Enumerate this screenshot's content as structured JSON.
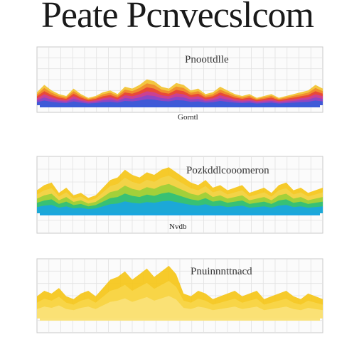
{
  "page": {
    "headline": "Peate Pcnvecslcom",
    "footer": ""
  },
  "chart_data": [
    {
      "type": "area",
      "title": "Pnoottdlle",
      "xlabel": "Gorntl",
      "colors": [
        "#f2c230",
        "#f08a2c",
        "#e8443a",
        "#c8409a",
        "#8a46c8",
        "#3a5bd9"
      ],
      "x": [
        0,
        1,
        2,
        3,
        4,
        5,
        6,
        7,
        8,
        9,
        10,
        11,
        12,
        13,
        14,
        15,
        16,
        17,
        18,
        19,
        20,
        21,
        22,
        23,
        24,
        25,
        26,
        27,
        28,
        29,
        30,
        31,
        32,
        33,
        34,
        35,
        36,
        37,
        38,
        39
      ],
      "series": [
        {
          "values": [
            0.35,
            0.55,
            0.4,
            0.3,
            0.25,
            0.45,
            0.3,
            0.2,
            0.25,
            0.35,
            0.4,
            0.3,
            0.5,
            0.45,
            0.55,
            0.7,
            0.65,
            0.5,
            0.45,
            0.6,
            0.55,
            0.4,
            0.45,
            0.3,
            0.35,
            0.5,
            0.4,
            0.3,
            0.25,
            0.3,
            0.2,
            0.25,
            0.3,
            0.2,
            0.25,
            0.3,
            0.35,
            0.4,
            0.55,
            0.45
          ]
        }
      ],
      "ylim": [
        0,
        1
      ]
    },
    {
      "type": "area",
      "title": "Pozkddlcooomeron",
      "xlabel": "Nvdb",
      "colors": [
        "#f5c518",
        "#f2d44a",
        "#9ccf3a",
        "#2fbf7a",
        "#1aa6e0"
      ],
      "x": [
        0,
        1,
        2,
        3,
        4,
        5,
        6,
        7,
        8,
        9,
        10,
        11,
        12,
        13,
        14,
        15,
        16,
        17,
        18,
        19,
        20,
        21,
        22,
        23,
        24,
        25,
        26,
        27,
        28,
        29,
        30,
        31,
        32,
        33,
        34,
        35,
        36,
        37,
        38,
        39
      ],
      "series": [
        {
          "values": [
            0.45,
            0.55,
            0.6,
            0.4,
            0.5,
            0.35,
            0.4,
            0.3,
            0.35,
            0.5,
            0.65,
            0.7,
            0.85,
            0.75,
            0.7,
            0.8,
            0.75,
            0.85,
            0.9,
            0.8,
            0.7,
            0.6,
            0.55,
            0.65,
            0.5,
            0.55,
            0.45,
            0.5,
            0.55,
            0.4,
            0.45,
            0.5,
            0.4,
            0.55,
            0.6,
            0.45,
            0.5,
            0.4,
            0.45,
            0.5
          ]
        }
      ],
      "ylim": [
        0,
        1
      ]
    },
    {
      "type": "area",
      "title": "Pnuinnnttnacd",
      "colors": [
        "#f5c518",
        "#f7d64a",
        "#fae27a"
      ],
      "x": [
        0,
        1,
        2,
        3,
        4,
        5,
        6,
        7,
        8,
        9,
        10,
        11,
        12,
        13,
        14,
        15,
        16,
        17,
        18,
        19,
        20,
        21,
        22,
        23,
        24,
        25,
        26,
        27,
        28,
        29,
        30,
        31,
        32,
        33,
        34,
        35,
        36,
        37,
        38,
        39
      ],
      "series": [
        {
          "values": [
            0.4,
            0.5,
            0.45,
            0.55,
            0.4,
            0.35,
            0.45,
            0.5,
            0.4,
            0.55,
            0.7,
            0.75,
            0.85,
            0.7,
            0.8,
            0.9,
            0.75,
            0.85,
            0.95,
            0.8,
            0.45,
            0.4,
            0.5,
            0.45,
            0.35,
            0.4,
            0.45,
            0.5,
            0.4,
            0.45,
            0.5,
            0.35,
            0.4,
            0.45,
            0.5,
            0.4,
            0.35,
            0.45,
            0.4,
            0.35
          ]
        }
      ],
      "ylim": [
        0,
        1
      ]
    }
  ]
}
